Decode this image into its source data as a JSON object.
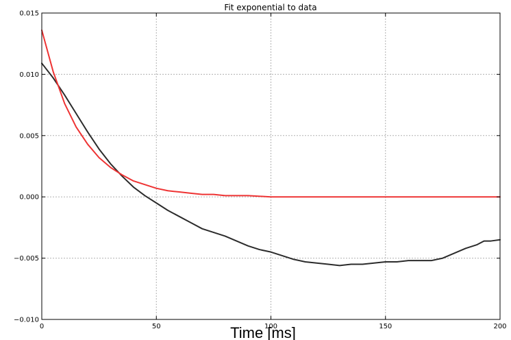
{
  "chart_data": {
    "type": "line",
    "title": "Fit exponential to data",
    "xlabel": "Time [ms]",
    "ylabel": "",
    "xlim": [
      0,
      200
    ],
    "ylim": [
      -0.01,
      0.015
    ],
    "grid": true,
    "x_ticks": [
      0,
      50,
      100,
      150,
      200
    ],
    "x_tick_labels": [
      "0",
      "50",
      "100",
      "150",
      "200"
    ],
    "y_ticks": [
      -0.01,
      -0.005,
      0.0,
      0.005,
      0.01,
      0.015
    ],
    "y_tick_labels": [
      "−0.010",
      "−0.005",
      "0.000",
      "0.005",
      "0.010",
      "0.015"
    ],
    "series": [
      {
        "color": "#2b2b2b",
        "x": [
          0,
          5,
          10,
          15,
          20,
          25,
          30,
          35,
          40,
          45,
          50,
          55,
          60,
          65,
          70,
          75,
          80,
          85,
          90,
          95,
          100,
          105,
          110,
          115,
          120,
          125,
          130,
          135,
          140,
          145,
          150,
          155,
          160,
          165,
          170,
          175,
          180,
          185,
          190,
          193,
          196,
          200
        ],
        "y": [
          0.0109,
          0.0097,
          0.0083,
          0.0068,
          0.0053,
          0.0039,
          0.0027,
          0.0017,
          0.0008,
          0.0001,
          -0.0005,
          -0.0011,
          -0.0016,
          -0.0021,
          -0.0026,
          -0.0029,
          -0.0032,
          -0.0036,
          -0.004,
          -0.0043,
          -0.0045,
          -0.0048,
          -0.0051,
          -0.0053,
          -0.0054,
          -0.0055,
          -0.0056,
          -0.0055,
          -0.0055,
          -0.0054,
          -0.0053,
          -0.0053,
          -0.0052,
          -0.0052,
          -0.0052,
          -0.005,
          -0.0046,
          -0.0042,
          -0.0039,
          -0.0036,
          -0.0036,
          -0.0035
        ]
      },
      {
        "color": "#ee3333",
        "x": [
          0,
          5,
          10,
          15,
          20,
          25,
          30,
          35,
          40,
          45,
          50,
          55,
          60,
          65,
          70,
          75,
          80,
          90,
          100,
          110,
          120,
          140,
          160,
          180,
          200
        ],
        "y": [
          0.0136,
          0.0102,
          0.0076,
          0.0057,
          0.0043,
          0.0032,
          0.0024,
          0.0018,
          0.0013,
          0.001,
          0.0007,
          0.0005,
          0.0004,
          0.0003,
          0.0002,
          0.0002,
          0.0001,
          0.0001,
          0.0,
          0.0,
          0.0,
          0.0,
          0.0,
          0.0,
          0.0
        ]
      }
    ]
  }
}
